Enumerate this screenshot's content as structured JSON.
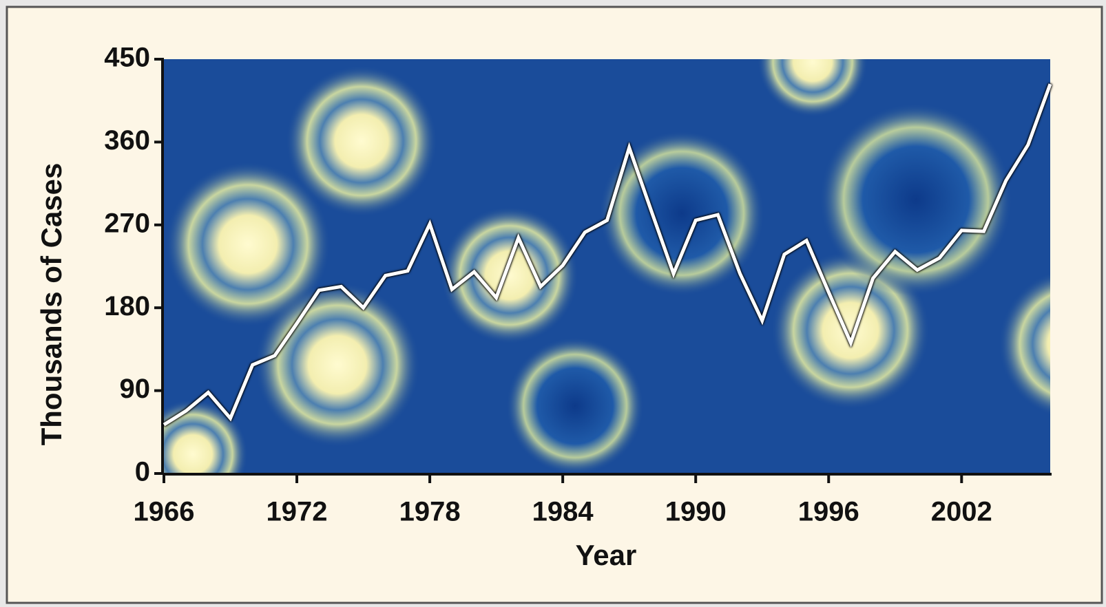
{
  "chart_data": {
    "type": "line",
    "x_label": "Year",
    "y_label": "Thousands of Cases",
    "x": [
      1966,
      1967,
      1968,
      1969,
      1970,
      1971,
      1972,
      1973,
      1974,
      1975,
      1976,
      1977,
      1978,
      1979,
      1980,
      1981,
      1982,
      1983,
      1984,
      1985,
      1986,
      1987,
      1988,
      1989,
      1990,
      1991,
      1992,
      1993,
      1994,
      1995,
      1996,
      1997,
      1998,
      1999,
      2000,
      2001,
      2002,
      2003,
      2004,
      2005,
      2006
    ],
    "series": [
      {
        "color": "#ffffff",
        "values": [
          53,
          68,
          88,
          60,
          118,
          128,
          163,
          199,
          203,
          180,
          215,
          220,
          271,
          200,
          219,
          191,
          256,
          203,
          226,
          262,
          275,
          354,
          285,
          217,
          275,
          281,
          217,
          166,
          238,
          253,
          197,
          142,
          212,
          241,
          221,
          234,
          264,
          263,
          318,
          357,
          423
        ]
      }
    ],
    "xlim": [
      1966,
      2006
    ],
    "xticks": [
      1966,
      1972,
      1978,
      1984,
      1990,
      1996,
      2002
    ],
    "ylim": [
      0,
      450
    ],
    "yticks": [
      0,
      90,
      180,
      270,
      360,
      450
    ]
  }
}
